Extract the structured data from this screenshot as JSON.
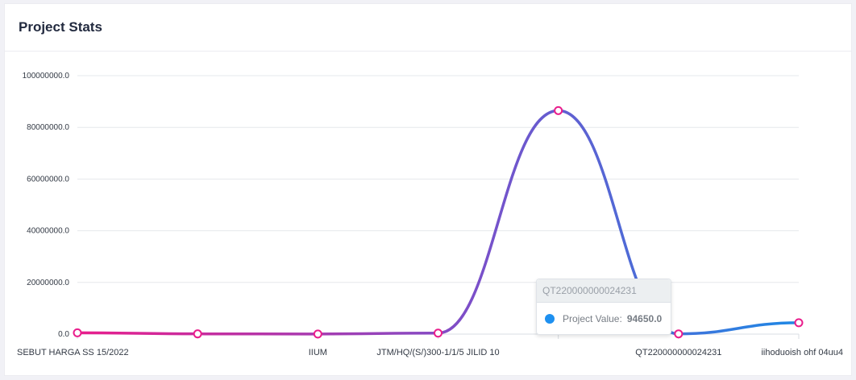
{
  "card": {
    "title": "Project Stats"
  },
  "chart_data": {
    "type": "line",
    "categories": [
      "SEBUT HARGA SS 15/2022",
      "",
      "IIUM",
      "JTM/HQ/(S/)300-1/1/5 JILID 10",
      "",
      "QT220000000024231",
      "iihoduoish ohf 04uu4"
    ],
    "series": [
      {
        "name": "Project Value",
        "values": [
          500000,
          100000,
          50000,
          400000,
          86500000,
          94650,
          4400000
        ]
      }
    ],
    "y_ticks": [
      "0.0",
      "20000000.0",
      "40000000.0",
      "60000000.0",
      "80000000.0",
      "100000000.0"
    ],
    "ylim": [
      0,
      100000000
    ],
    "grid": true,
    "colors": {
      "start": "#e91e8c",
      "mid": "#7b4fc9",
      "end": "#1e88e5",
      "marker_stroke": "#e91e8c"
    }
  },
  "tooltip": {
    "title": "QT220000000024231",
    "series_label": "Project Value:",
    "value": "94650.0",
    "marker_color": "#1e90f0"
  }
}
